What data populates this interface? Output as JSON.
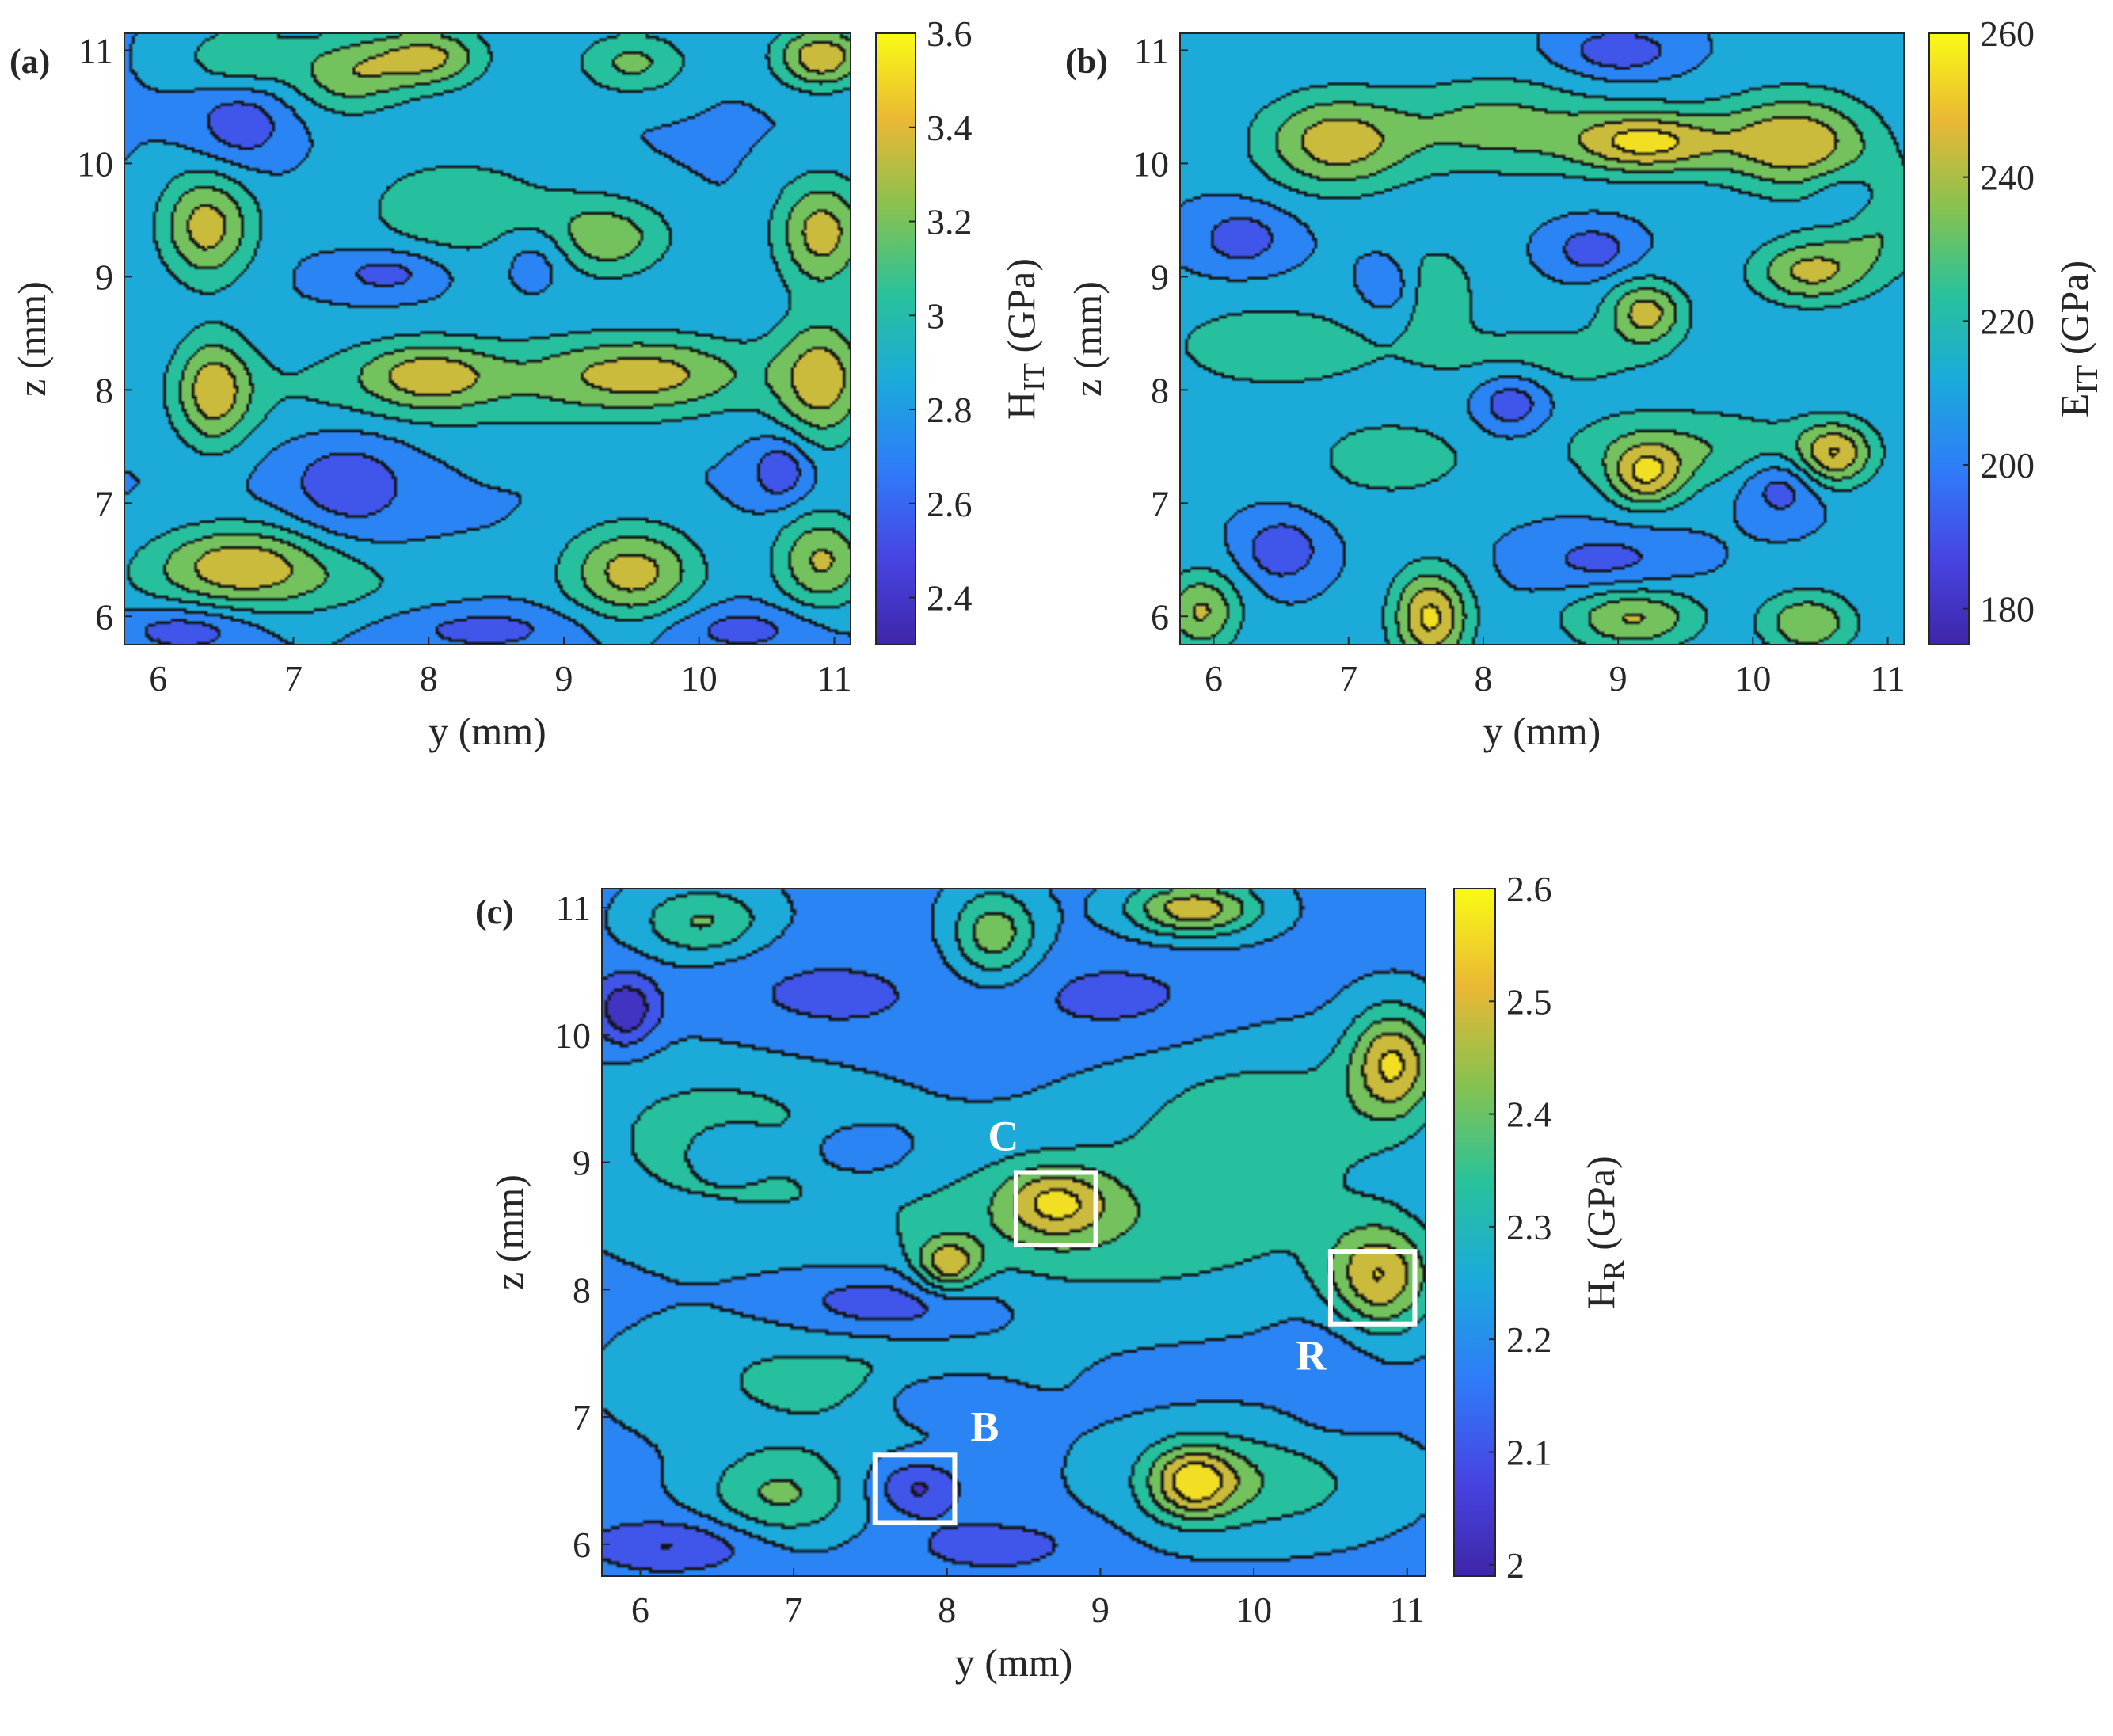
{
  "colormap": [
    "#3e26a8",
    "#4745e4",
    "#2f7cf9",
    "#1ba9dc",
    "#28c29b",
    "#86c250",
    "#eab834",
    "#f9fb15"
  ],
  "panels": [
    {
      "id": "a",
      "panel_label": "(a)",
      "chart_data": {
        "type": "heatmap",
        "subtype": "filled-contour",
        "xlabel": "y (mm)",
        "ylabel": "z (mm)",
        "xlim": [
          5.75,
          11.12
        ],
        "ylim": [
          5.75,
          11.15
        ],
        "xticks": [
          6,
          7,
          8,
          9,
          10,
          11
        ],
        "yticks": [
          6,
          7,
          8,
          9,
          10,
          11
        ],
        "colorbar": {
          "label": "H",
          "subscript": "IT",
          "unit": " (GPa)",
          "clim": [
            2.3,
            3.6
          ],
          "ticks": [
            2.4,
            2.6,
            2.8,
            3,
            3.2,
            3.4,
            3.6
          ]
        },
        "base_value": 2.78,
        "features": [
          {
            "y": 6.35,
            "z": 9.45,
            "value": 3.35,
            "sy": 0.25,
            "sz": 0.35
          },
          {
            "y": 6.4,
            "z": 8.0,
            "value": 3.3,
            "sy": 0.2,
            "sz": 0.35
          },
          {
            "y": 6.6,
            "z": 6.5,
            "value": 3.25,
            "sy": 0.45,
            "sz": 0.25
          },
          {
            "y": 8.0,
            "z": 8.15,
            "value": 3.2,
            "sy": 0.35,
            "sz": 0.2
          },
          {
            "y": 8.0,
            "z": 10.95,
            "value": 3.3,
            "sy": 0.3,
            "sz": 0.2
          },
          {
            "y": 9.6,
            "z": 8.15,
            "value": 3.3,
            "sy": 0.6,
            "sz": 0.25
          },
          {
            "y": 9.5,
            "z": 6.4,
            "value": 3.35,
            "sy": 0.35,
            "sz": 0.3
          },
          {
            "y": 9.3,
            "z": 9.35,
            "value": 3.2,
            "sy": 0.35,
            "sz": 0.25
          },
          {
            "y": 10.9,
            "z": 9.4,
            "value": 3.35,
            "sy": 0.25,
            "sz": 0.35
          },
          {
            "y": 10.9,
            "z": 8.1,
            "value": 3.35,
            "sy": 0.25,
            "sz": 0.4
          },
          {
            "y": 10.9,
            "z": 6.5,
            "value": 3.3,
            "sy": 0.25,
            "sz": 0.3
          },
          {
            "y": 10.9,
            "z": 10.95,
            "value": 3.4,
            "sy": 0.25,
            "sz": 0.2
          },
          {
            "y": 9.5,
            "z": 10.9,
            "value": 3.15,
            "sy": 0.3,
            "sz": 0.2
          },
          {
            "y": 7.4,
            "z": 10.8,
            "value": 3.2,
            "sy": 0.3,
            "sz": 0.25
          },
          {
            "y": 6.6,
            "z": 10.95,
            "value": 3.1,
            "sy": 0.3,
            "sz": 0.2
          },
          {
            "y": 8.2,
            "z": 9.6,
            "value": 3.05,
            "sy": 0.6,
            "sz": 0.4
          },
          {
            "y": 7.8,
            "z": 8.0,
            "value": 3.0,
            "sy": 1.2,
            "sz": 0.35
          },
          {
            "y": 6.9,
            "z": 6.3,
            "value": 3.0,
            "sy": 0.9,
            "sz": 0.25
          },
          {
            "y": 6.6,
            "z": 10.35,
            "value": 2.5,
            "sy": 0.25,
            "sz": 0.25
          },
          {
            "y": 7.4,
            "z": 7.2,
            "value": 2.5,
            "sy": 0.35,
            "sz": 0.35
          },
          {
            "y": 7.7,
            "z": 9.05,
            "value": 2.5,
            "sy": 0.3,
            "sz": 0.15
          },
          {
            "y": 8.8,
            "z": 9.2,
            "value": 2.55,
            "sy": 0.2,
            "sz": 0.2
          },
          {
            "y": 10.6,
            "z": 7.3,
            "value": 2.45,
            "sy": 0.15,
            "sz": 0.2
          },
          {
            "y": 6.2,
            "z": 5.9,
            "value": 2.5,
            "sy": 0.35,
            "sz": 0.15
          },
          {
            "y": 8.4,
            "z": 5.9,
            "value": 2.55,
            "sy": 0.5,
            "sz": 0.15
          },
          {
            "y": 10.3,
            "z": 5.9,
            "value": 2.55,
            "sy": 0.4,
            "sz": 0.15
          }
        ]
      }
    },
    {
      "id": "b",
      "panel_label": "(b)",
      "chart_data": {
        "type": "heatmap",
        "subtype": "filled-contour",
        "xlabel": "y (mm)",
        "ylabel": "z (mm)",
        "xlim": [
          5.75,
          11.12
        ],
        "ylim": [
          5.75,
          11.15
        ],
        "xticks": [
          6,
          7,
          8,
          9,
          10,
          11
        ],
        "yticks": [
          6,
          7,
          8,
          9,
          10,
          11
        ],
        "colorbar": {
          "label": "E",
          "subscript": "IT",
          "unit": " (GPa)",
          "clim": [
            175,
            260
          ],
          "ticks": [
            180,
            200,
            220,
            240,
            260
          ]
        },
        "base_value": 208,
        "features": [
          {
            "y": 6.9,
            "z": 10.2,
            "value": 245,
            "sy": 0.4,
            "sz": 0.3
          },
          {
            "y": 9.2,
            "z": 10.2,
            "value": 252,
            "sy": 0.4,
            "sz": 0.2
          },
          {
            "y": 10.3,
            "z": 10.2,
            "value": 248,
            "sy": 0.4,
            "sz": 0.3
          },
          {
            "y": 8.1,
            "z": 10.35,
            "value": 232,
            "sy": 0.5,
            "sz": 0.3
          },
          {
            "y": 10.4,
            "z": 9.05,
            "value": 240,
            "sy": 0.3,
            "sz": 0.2
          },
          {
            "y": 9.2,
            "z": 8.7,
            "value": 242,
            "sy": 0.2,
            "sz": 0.2
          },
          {
            "y": 7.6,
            "z": 8.9,
            "value": 235,
            "sy": 0.2,
            "sz": 0.25
          },
          {
            "y": 9.2,
            "z": 7.25,
            "value": 242,
            "sy": 0.2,
            "sz": 0.2
          },
          {
            "y": 10.6,
            "z": 7.45,
            "value": 245,
            "sy": 0.2,
            "sz": 0.2
          },
          {
            "y": 9.5,
            "z": 7.5,
            "value": 228,
            "sy": 0.7,
            "sz": 0.25
          },
          {
            "y": 7.6,
            "z": 6.0,
            "value": 252,
            "sy": 0.2,
            "sz": 0.3
          },
          {
            "y": 9.1,
            "z": 6.0,
            "value": 240,
            "sy": 0.35,
            "sz": 0.2
          },
          {
            "y": 10.4,
            "z": 5.95,
            "value": 238,
            "sy": 0.25,
            "sz": 0.2
          },
          {
            "y": 5.9,
            "z": 6.05,
            "value": 240,
            "sy": 0.2,
            "sz": 0.25
          },
          {
            "y": 6.4,
            "z": 8.4,
            "value": 224,
            "sy": 0.6,
            "sz": 0.3
          },
          {
            "y": 8.4,
            "z": 8.3,
            "value": 222,
            "sy": 0.7,
            "sz": 0.25
          },
          {
            "y": 7.3,
            "z": 7.4,
            "value": 222,
            "sy": 0.5,
            "sz": 0.3
          },
          {
            "y": 10.9,
            "z": 9.5,
            "value": 230,
            "sy": 0.3,
            "sz": 0.35
          },
          {
            "y": 6.5,
            "z": 6.6,
            "value": 186,
            "sy": 0.2,
            "sz": 0.2
          },
          {
            "y": 8.2,
            "z": 7.9,
            "value": 185,
            "sy": 0.2,
            "sz": 0.2
          },
          {
            "y": 8.8,
            "z": 9.25,
            "value": 188,
            "sy": 0.2,
            "sz": 0.15
          },
          {
            "y": 10.2,
            "z": 7.15,
            "value": 188,
            "sy": 0.2,
            "sz": 0.2
          },
          {
            "y": 7.4,
            "z": 8.9,
            "value": 190,
            "sy": 0.2,
            "sz": 0.2
          },
          {
            "y": 9.0,
            "z": 11.0,
            "value": 188,
            "sy": 0.3,
            "sz": 0.15
          },
          {
            "y": 10.7,
            "z": 9.7,
            "value": 190,
            "sy": 0.2,
            "sz": 0.2
          },
          {
            "y": 6.2,
            "z": 9.35,
            "value": 190,
            "sy": 0.25,
            "sz": 0.2
          },
          {
            "y": 8.9,
            "z": 6.5,
            "value": 192,
            "sy": 0.4,
            "sz": 0.2
          }
        ]
      }
    },
    {
      "id": "c",
      "panel_label": "(c)",
      "chart_data": {
        "type": "heatmap",
        "subtype": "filled-contour",
        "xlabel": "y (mm)",
        "ylabel": "z (mm)",
        "xlim": [
          5.75,
          11.12
        ],
        "ylim": [
          5.75,
          11.15
        ],
        "xticks": [
          6,
          7,
          8,
          9,
          10,
          11
        ],
        "yticks": [
          6,
          7,
          8,
          9,
          10,
          11
        ],
        "colorbar": {
          "label": "H",
          "subscript": "R",
          "unit": " (GPa)",
          "clim": [
            1.99,
            2.6
          ],
          "ticks": [
            2,
            2.1,
            2.2,
            2.3,
            2.4,
            2.5,
            2.6
          ]
        },
        "base_value": 2.2,
        "features": [
          {
            "y": 9.0,
            "z": 8.5,
            "value": 2.35,
            "sy": 1.2,
            "sz": 0.45
          },
          {
            "y": 6.5,
            "z": 9.2,
            "value": 2.33,
            "sy": 0.7,
            "sz": 0.5
          },
          {
            "y": 10.1,
            "z": 9.4,
            "value": 2.33,
            "sy": 0.7,
            "sz": 0.4
          },
          {
            "y": 7.2,
            "z": 7.3,
            "value": 2.32,
            "sy": 0.8,
            "sz": 0.35
          },
          {
            "y": 10.0,
            "z": 6.5,
            "value": 2.35,
            "sy": 0.6,
            "sz": 0.3
          },
          {
            "y": 6.9,
            "z": 6.4,
            "value": 2.38,
            "sy": 0.35,
            "sz": 0.25
          },
          {
            "y": 8.7,
            "z": 8.7,
            "value": 2.42,
            "sy": 0.25,
            "sz": 0.2
          },
          {
            "y": 10.8,
            "z": 8.1,
            "value": 2.5,
            "sy": 0.25,
            "sz": 0.3
          },
          {
            "y": 9.6,
            "z": 6.5,
            "value": 2.48,
            "sy": 0.2,
            "sz": 0.2
          },
          {
            "y": 9.6,
            "z": 11.0,
            "value": 2.5,
            "sy": 0.3,
            "sz": 0.15
          },
          {
            "y": 10.9,
            "z": 9.8,
            "value": 2.5,
            "sy": 0.2,
            "sz": 0.3
          },
          {
            "y": 8.0,
            "z": 8.2,
            "value": 2.45,
            "sy": 0.15,
            "sz": 0.15
          },
          {
            "y": 8.3,
            "z": 10.8,
            "value": 2.42,
            "sy": 0.2,
            "sz": 0.25
          },
          {
            "y": 6.4,
            "z": 10.9,
            "value": 2.38,
            "sy": 0.3,
            "sz": 0.2
          },
          {
            "y": 5.9,
            "z": 10.2,
            "value": 2.0,
            "sy": 0.15,
            "sz": 0.2
          },
          {
            "y": 7.6,
            "z": 7.9,
            "value": 2.05,
            "sy": 0.5,
            "sz": 0.2
          },
          {
            "y": 7.8,
            "z": 6.45,
            "value": 2.05,
            "sy": 0.2,
            "sz": 0.15
          },
          {
            "y": 7.95,
            "z": 7.15,
            "value": 2.08,
            "sy": 0.3,
            "sz": 0.15
          },
          {
            "y": 7.4,
            "z": 9.1,
            "value": 2.08,
            "sy": 0.25,
            "sz": 0.15
          },
          {
            "y": 6.6,
            "z": 9.1,
            "value": 2.1,
            "sy": 0.2,
            "sz": 0.15
          },
          {
            "y": 6.2,
            "z": 6.0,
            "value": 2.06,
            "sy": 0.4,
            "sz": 0.15
          },
          {
            "y": 8.3,
            "z": 6.0,
            "value": 2.1,
            "sy": 0.4,
            "sz": 0.15
          },
          {
            "y": 10.5,
            "z": 7.5,
            "value": 2.15,
            "sy": 0.2,
            "sz": 0.5
          },
          {
            "y": 9.1,
            "z": 10.3,
            "value": 2.12,
            "sy": 0.5,
            "sz": 0.25
          },
          {
            "y": 7.2,
            "z": 10.3,
            "value": 2.12,
            "sy": 0.6,
            "sz": 0.3
          }
        ],
        "roi_boxes": [
          {
            "label": "C",
            "y0": 8.45,
            "y1": 8.97,
            "z0": 8.35,
            "z1": 8.92
          },
          {
            "label": "R",
            "y0": 10.5,
            "y1": 11.05,
            "z0": 7.73,
            "z1": 8.3
          },
          {
            "label": "B",
            "y0": 7.53,
            "y1": 8.05,
            "z0": 6.17,
            "z1": 6.7
          }
        ]
      }
    }
  ]
}
